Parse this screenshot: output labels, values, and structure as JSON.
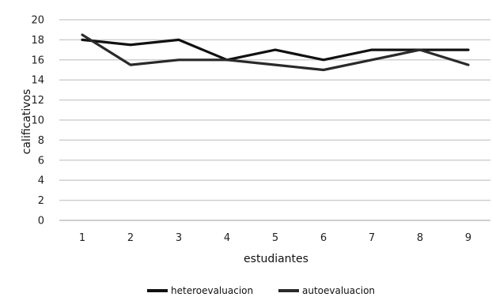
{
  "chart_data": {
    "type": "line",
    "x": [
      1,
      2,
      3,
      4,
      5,
      6,
      7,
      8,
      9
    ],
    "xlabel": "estudiantes",
    "ylabel": "calificativos",
    "ylim": [
      0,
      20
    ],
    "yticks": [
      0,
      2,
      4,
      6,
      8,
      10,
      12,
      14,
      16,
      18,
      20
    ],
    "grid": true,
    "legend_position": "bottom",
    "series": [
      {
        "name": "heteroevaluacion",
        "values": [
          18,
          17.5,
          18,
          16,
          17,
          16,
          17,
          17,
          17
        ],
        "color": "#111111"
      },
      {
        "name": "autoevaluacion",
        "values": [
          18.5,
          15.5,
          16,
          16,
          15.5,
          15,
          16,
          17,
          15.5
        ],
        "color": "#2a2a2a"
      }
    ]
  }
}
